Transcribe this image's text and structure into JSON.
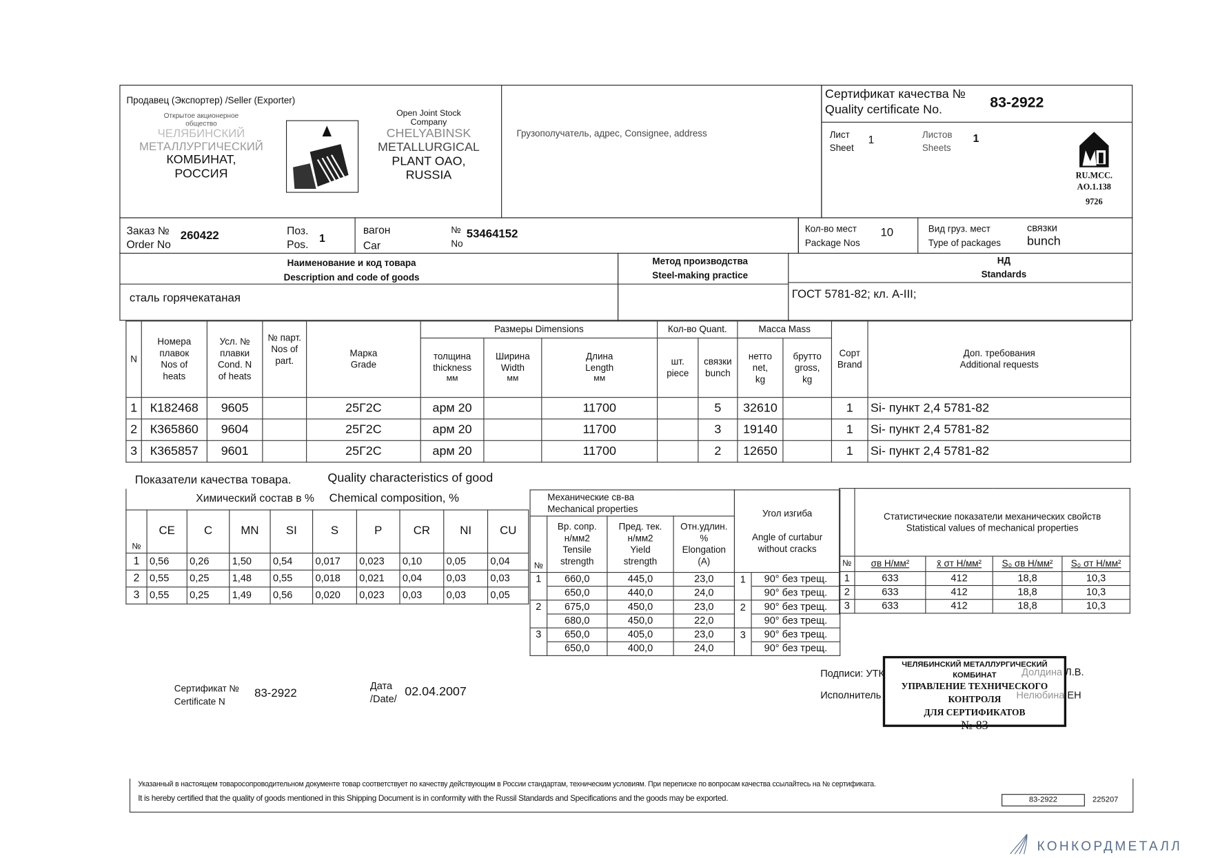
{
  "seller": {
    "label": "Продавец (Экспортер) /Seller (Exporter)",
    "name_ru": [
      "Открытое акционерное",
      "общество",
      "ЧЕЛЯБИНСКИЙ",
      "МЕТАЛЛУРГИЧЕСКИЙ",
      "КОМБИНАТ,",
      "РОССИЯ"
    ],
    "name_en": [
      "Open Joint Stock",
      "Company",
      "CHELYABINSK",
      "METALLURGICAL",
      "PLANT OAO,",
      "RUSSIA"
    ]
  },
  "consignee": {
    "label": "Грузополучатель, адрес, Consignee, address"
  },
  "certificate": {
    "label_ru": "Сертификат качества №",
    "label_en": "Quality certificate No.",
    "number": "83-2922",
    "sheet_label_ru": "Лист",
    "sheet_label_en": "Sheet",
    "sheet": "1",
    "sheets_label_ru": "Листов",
    "sheets_label_en": "Sheets",
    "sheets": "1",
    "mark_text": [
      "RU.MCC.",
      "AO.1.138",
      "9726"
    ]
  },
  "order": {
    "order_label_ru": "Заказ №",
    "order_label_en": "Order No",
    "order_no": "260422",
    "pos_label_ru": "Поз.",
    "pos_label_en": "Pos.",
    "pos": "1",
    "car_label_ru": "вагон",
    "car_label_en": "Car",
    "car_no_label_ru": "№",
    "car_no_label_en": "No",
    "car_no": "53464152",
    "packages_label_ru": "Кол-во мест",
    "packages_label_en": "Package Nos",
    "packages": "10",
    "type_label_ru": "Вид груз. мест",
    "type_label_en": "Type of packages",
    "type_ru": "связки",
    "type_en": "bunch"
  },
  "description": {
    "label_ru": "Наименование и код товара",
    "label_en": "Description and code of goods",
    "value": "сталь горячекатаная",
    "method_label_ru": "Метод производства",
    "method_label_en": "Steel-making practice",
    "standards_label_ru": "НД",
    "standards_label_en": "Standards",
    "standards_value": "ГОСТ 5781-82;  кл. А-III;"
  },
  "goods_table": {
    "headers": {
      "n": "N",
      "heats": [
        "Номера",
        "плавок",
        "Nos of",
        "heats"
      ],
      "cond": [
        "Усл. №",
        "плавки",
        "Cond. N",
        "of heats"
      ],
      "part": [
        "№ парт.",
        "Nos of",
        "part."
      ],
      "grade": [
        "Марка",
        "Grade"
      ],
      "dimensions": "Размеры Dimensions",
      "thickness": [
        "толщина",
        "thickness",
        "мм"
      ],
      "width": [
        "Ширина",
        "Width",
        "мм"
      ],
      "length": [
        "Длина",
        "Length",
        "мм"
      ],
      "quant": "Кол-во Quant.",
      "piece": [
        "шт.",
        "piece"
      ],
      "bunch": [
        "связки",
        "bunch"
      ],
      "mass": "Масса Mass",
      "net": [
        "нетто",
        "net,",
        "kg"
      ],
      "gross": [
        "брутто",
        "gross,",
        "kg"
      ],
      "brand": [
        "Сорт",
        "Brand"
      ],
      "additional": [
        "Доп. требования",
        "Additional requests"
      ]
    },
    "rows": [
      {
        "n": "1",
        "heat": "К182468",
        "cond": "9605",
        "part": "",
        "grade": "25Г2С",
        "thickness": "арм 20",
        "width": "",
        "length": "11700",
        "piece": "",
        "bunch": "5",
        "net": "32610",
        "gross": "",
        "brand": "1",
        "additional": "Si-  пункт 2,4   5781-82"
      },
      {
        "n": "2",
        "heat": "К365860",
        "cond": "9604",
        "part": "",
        "grade": "25Г2С",
        "thickness": "арм 20",
        "width": "",
        "length": "11700",
        "piece": "",
        "bunch": "3",
        "net": "19140",
        "gross": "",
        "brand": "1",
        "additional": "Si-  пункт 2,4   5781-82"
      },
      {
        "n": "3",
        "heat": "К365857",
        "cond": "9601",
        "part": "",
        "grade": "25Г2С",
        "thickness": "арм 20",
        "width": "",
        "length": "11700",
        "piece": "",
        "bunch": "2",
        "net": "12650",
        "gross": "",
        "brand": "1",
        "additional": "Si-  пункт 2,4   5781-82"
      }
    ]
  },
  "quality": {
    "title_ru": "Показатели качества товара.",
    "title_en": "Quality characteristics of good"
  },
  "chemical": {
    "title_ru": "Химический состав в %",
    "title_en": "Chemical  composition, %",
    "columns": [
      "№",
      "CE",
      "C",
      "MN",
      "SI",
      "S",
      "P",
      "CR",
      "NI",
      "CU"
    ],
    "rows": [
      [
        "1",
        "0,56",
        "0,26",
        "1,50",
        "0,54",
        "0,017",
        "0,023",
        "0,10",
        "0,05",
        "0,04"
      ],
      [
        "2",
        "0,55",
        "0,25",
        "1,48",
        "0,55",
        "0,018",
        "0,021",
        "0,04",
        "0,03",
        "0,03"
      ],
      [
        "3",
        "0,55",
        "0,25",
        "1,49",
        "0,56",
        "0,020",
        "0,023",
        "0,03",
        "0,03",
        "0,05"
      ]
    ]
  },
  "mechanical": {
    "title_ru": "Механические св-ва",
    "title_en": "Mechanical properties",
    "no": "№",
    "columns": [
      [
        "Вр. сопр.",
        "н/мм2",
        "Tensile",
        "strength"
      ],
      [
        "Пред. тек.",
        "н/мм2",
        "Yield",
        "strength"
      ],
      [
        "Отн.удлин.",
        "%",
        "Elongation",
        "(A)"
      ]
    ],
    "rows": [
      {
        "n": "1",
        "tensile": "660,0",
        "yield": "445,0",
        "elong": "23,0"
      },
      {
        "n": "",
        "tensile": "650,0",
        "yield": "440,0",
        "elong": "24,0"
      },
      {
        "n": "2",
        "tensile": "675,0",
        "yield": "450,0",
        "elong": "23,0"
      },
      {
        "n": "",
        "tensile": "680,0",
        "yield": "450,0",
        "elong": "22,0"
      },
      {
        "n": "3",
        "tensile": "650,0",
        "yield": "405,0",
        "elong": "23,0"
      },
      {
        "n": "",
        "tensile": "650,0",
        "yield": "400,0",
        "elong": "24,0"
      }
    ]
  },
  "bend": {
    "title_ru": "Угол  изгиба",
    "title_en": [
      "Angle of curtabur",
      "without cracks"
    ],
    "rows": [
      {
        "n": "1",
        "value": "90° без трещ."
      },
      {
        "n": "",
        "value": "90° без трещ."
      },
      {
        "n": "2",
        "value": "90° без трещ."
      },
      {
        "n": "",
        "value": "90° без трещ."
      },
      {
        "n": "3",
        "value": "90° без трещ."
      },
      {
        "n": "",
        "value": "90° без трещ."
      }
    ]
  },
  "statistics": {
    "title_ru": "Статистические показатели механических свойств",
    "title_en": "Statistical values of mechanical properties",
    "columns": [
      "№",
      "σв Н/мм²",
      "x̄ σт Н/мм²",
      "S₀ σв Н/мм²",
      "S₀ σт Н/мм²"
    ],
    "rows": [
      [
        "1",
        "633",
        "412",
        "18,8",
        "10,3"
      ],
      [
        "2",
        "633",
        "412",
        "18,8",
        "10,3"
      ],
      [
        "3",
        "633",
        "412",
        "18,8",
        "10,3"
      ]
    ]
  },
  "footer": {
    "cert_label_ru": "Сертификат №",
    "cert_label_en": "Certificate N",
    "cert_no": "83-2922",
    "date_label_ru": "Дата",
    "date_label_en": "/Date/",
    "date": "02.04.2007",
    "signatures_label": "Подписи: УТК",
    "signer1": "Долдина Л.В.",
    "executor_label": "Исполнитель",
    "signer2": "Нелюбина ЕН",
    "stamp": [
      "ЧЕЛЯБИНСКИЙ МЕТАЛЛУРГИЧЕСКИЙ",
      "КОМБИНАТ",
      "УПРАВЛЕНИЕ ТЕХНИЧЕСКОГО КОНТРОЛЯ",
      "ДЛЯ СЕРТИФИКАТОВ",
      "№ 83"
    ],
    "statement_ru": "Указанный в настоящем товаросопроводительном документе товар соответствует по качеству действующим в России стандартам, техническим условиям. При переписке по вопросам качества ссылайтесь на № сертификата.",
    "statement_en": "It is hereby certified that the quality of goods mentioned in this Shipping Document is in conformity with the Russil Standards and Specifications and the goods may be exported.",
    "box_no": "83-2922",
    "code": "225207"
  },
  "watermark": {
    "text": "КОНКОРДМЕТАЛЛ",
    "color": "#5a6f8c"
  }
}
